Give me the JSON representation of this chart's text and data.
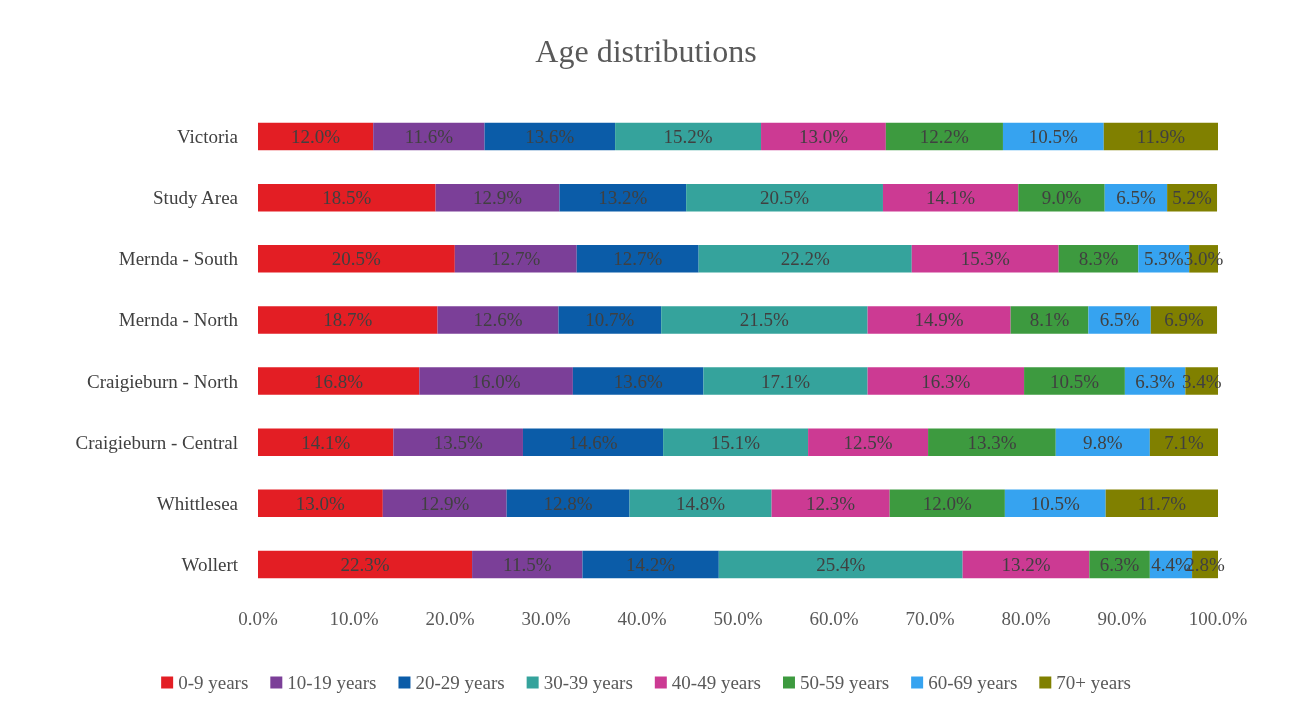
{
  "chart_data": {
    "type": "bar",
    "title": "Age distributions",
    "orientation": "horizontal",
    "stacked": true,
    "legend": "bottom",
    "categories": [
      "Victoria",
      "Study Area",
      "Mernda - South",
      "Mernda - North",
      "Craigieburn - North",
      "Craigieburn - Central",
      "Whittlesea",
      "Wollert"
    ],
    "xlim": [
      0,
      100
    ],
    "xticks": [
      {
        "value": 0,
        "label": "0.0%"
      },
      {
        "value": 10,
        "label": "10.0%"
      },
      {
        "value": 20,
        "label": "20.0%"
      },
      {
        "value": 30,
        "label": "30.0%"
      },
      {
        "value": 40,
        "label": "40.0%"
      },
      {
        "value": 50,
        "label": "50.0%"
      },
      {
        "value": 60,
        "label": "60.0%"
      },
      {
        "value": 70,
        "label": "70.0%"
      },
      {
        "value": 80,
        "label": "80.0%"
      },
      {
        "value": 90,
        "label": "90.0%"
      },
      {
        "value": 100,
        "label": "100.0%"
      }
    ],
    "series": [
      {
        "name": "0-9 years",
        "color": "#e31e24",
        "values": [
          12.0,
          18.5,
          20.5,
          18.7,
          16.8,
          14.1,
          13.0,
          22.3
        ],
        "value_labels": [
          "12.0%",
          "18.5%",
          "20.5%",
          "18.7%",
          "16.8%",
          "14.1%",
          "13.0%",
          "22.3%"
        ]
      },
      {
        "name": "10-19 years",
        "color": "#7b3f98",
        "values": [
          11.6,
          12.9,
          12.7,
          12.6,
          16.0,
          13.5,
          12.9,
          11.5
        ],
        "value_labels": [
          "11.6%",
          "12.9%",
          "12.7%",
          "12.6%",
          "16.0%",
          "13.5%",
          "12.9%",
          "11.5%"
        ]
      },
      {
        "name": "20-29 years",
        "color": "#0b5ca8",
        "values": [
          13.6,
          13.2,
          12.7,
          10.7,
          13.6,
          14.6,
          12.8,
          14.2
        ],
        "value_labels": [
          "13.6%",
          "13.2%",
          "12.7%",
          "10.7%",
          "13.6%",
          "14.6%",
          "12.8%",
          "14.2%"
        ]
      },
      {
        "name": "30-39 years",
        "color": "#35a39c",
        "values": [
          15.2,
          20.5,
          22.2,
          21.5,
          17.1,
          15.1,
          14.8,
          25.4
        ],
        "value_labels": [
          "15.2%",
          "20.5%",
          "22.2%",
          "21.5%",
          "17.1%",
          "15.1%",
          "14.8%",
          "25.4%"
        ]
      },
      {
        "name": "40-49 years",
        "color": "#cc3a93",
        "values": [
          13.0,
          14.1,
          15.3,
          14.9,
          16.3,
          12.5,
          12.3,
          13.2
        ],
        "value_labels": [
          "13.0%",
          "14.1%",
          "15.3%",
          "14.9%",
          "16.3%",
          "12.5%",
          "12.3%",
          "13.2%"
        ]
      },
      {
        "name": "50-59 years",
        "color": "#3d9a3f",
        "values": [
          12.2,
          9.0,
          8.3,
          8.1,
          10.5,
          13.3,
          12.0,
          6.3
        ],
        "value_labels": [
          "12.2%",
          "9.0%",
          "8.3%",
          "8.1%",
          "10.5%",
          "13.3%",
          "12.0%",
          "6.3%"
        ]
      },
      {
        "name": "60-69 years",
        "color": "#36a3f0",
        "values": [
          10.5,
          6.5,
          5.3,
          6.5,
          6.3,
          9.8,
          10.5,
          4.4
        ],
        "value_labels": [
          "10.5%",
          "6.5%",
          "5.3%",
          "6.5%",
          "6.3%",
          "9.8%",
          "10.5%",
          "4.4%"
        ]
      },
      {
        "name": "70+ years",
        "color": "#808000",
        "values": [
          11.9,
          5.2,
          3.0,
          6.9,
          3.4,
          7.1,
          11.7,
          2.8
        ],
        "value_labels": [
          "11.9%",
          "5.2%",
          "3.0%",
          "6.9%",
          "3.4%",
          "7.1%",
          "11.7%",
          "2.8%"
        ]
      }
    ]
  }
}
